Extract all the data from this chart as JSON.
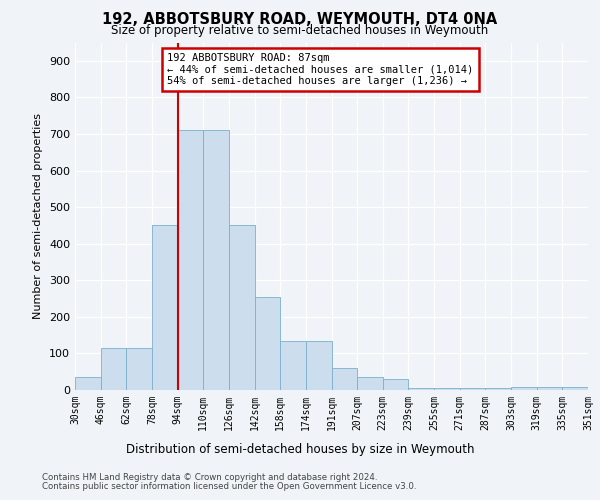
{
  "title1": "192, ABBOTSBURY ROAD, WEYMOUTH, DT4 0NA",
  "title2": "Size of property relative to semi-detached houses in Weymouth",
  "xlabel": "Distribution of semi-detached houses by size in Weymouth",
  "ylabel": "Number of semi-detached properties",
  "bar_values": [
    35,
    115,
    115,
    450,
    710,
    710,
    450,
    255,
    135,
    135,
    60,
    35,
    30,
    5,
    5,
    5,
    5,
    8,
    7,
    7
  ],
  "bin_labels": [
    "30sqm",
    "46sqm",
    "62sqm",
    "78sqm",
    "94sqm",
    "110sqm",
    "126sqm",
    "142sqm",
    "158sqm",
    "174sqm",
    "191sqm",
    "207sqm",
    "223sqm",
    "239sqm",
    "255sqm",
    "271sqm",
    "287sqm",
    "303sqm",
    "319sqm",
    "335sqm",
    "351sqm"
  ],
  "bar_color": "#ccdded",
  "bar_edge_color": "#7ab0cc",
  "vline_x": 4.0,
  "annotation_line1": "192 ABBOTSBURY ROAD: 87sqm",
  "annotation_line2": "← 44% of semi-detached houses are smaller (1,014)",
  "annotation_line3": "54% of semi-detached houses are larger (1,236) →",
  "annotation_box_color": "#ffffff",
  "annotation_box_edge_color": "#cc0000",
  "vline_color": "#cc0000",
  "ylim": [
    0,
    950
  ],
  "yticks": [
    0,
    100,
    200,
    300,
    400,
    500,
    600,
    700,
    800,
    900
  ],
  "footer_line1": "Contains HM Land Registry data © Crown copyright and database right 2024.",
  "footer_line2": "Contains public sector information licensed under the Open Government Licence v3.0.",
  "bg_color": "#f0f4f8",
  "grid_color": "#ffffff"
}
